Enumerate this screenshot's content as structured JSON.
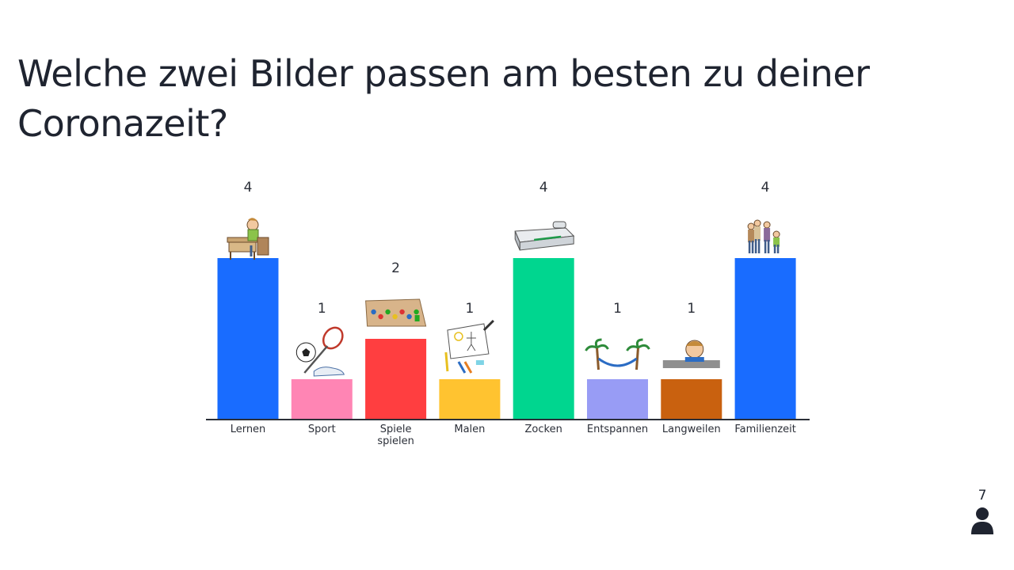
{
  "slide": {
    "question": "Welche zwei Bilder passen am besten zu deiner Coronazeit?",
    "participant_count": "7",
    "participant_icon": "person-icon"
  },
  "colors": {
    "text": "#1f2430",
    "axis": "#2b2f38"
  },
  "chart_data": {
    "type": "bar",
    "title": "",
    "xlabel": "",
    "ylabel": "",
    "ylim": [
      0,
      4
    ],
    "grid": false,
    "categories": [
      {
        "lines": [
          "Lernen"
        ],
        "value": 4,
        "color": "#196cff",
        "icon": "student-at-desk-icon"
      },
      {
        "lines": [
          "Sport"
        ],
        "value": 1,
        "color": "#ff85b4",
        "icon": "sports-equipment-icon"
      },
      {
        "lines": [
          "Spiele",
          "spielen"
        ],
        "value": 2,
        "color": "#ff3e40",
        "icon": "board-game-icon"
      },
      {
        "lines": [
          "Malen"
        ],
        "value": 1,
        "color": "#ffc330",
        "icon": "drawing-paper-icon"
      },
      {
        "lines": [
          "Zocken"
        ],
        "value": 4,
        "color": "#00d68f",
        "icon": "game-console-icon"
      },
      {
        "lines": [
          "Entspannen"
        ],
        "value": 1,
        "color": "#989cf5",
        "icon": "hammock-palms-icon"
      },
      {
        "lines": [
          "Langweilen"
        ],
        "value": 1,
        "color": "#c9610f",
        "icon": "bored-child-icon"
      },
      {
        "lines": [
          "Familienzeit"
        ],
        "value": 4,
        "color": "#196cff",
        "icon": "family-icon"
      }
    ]
  }
}
